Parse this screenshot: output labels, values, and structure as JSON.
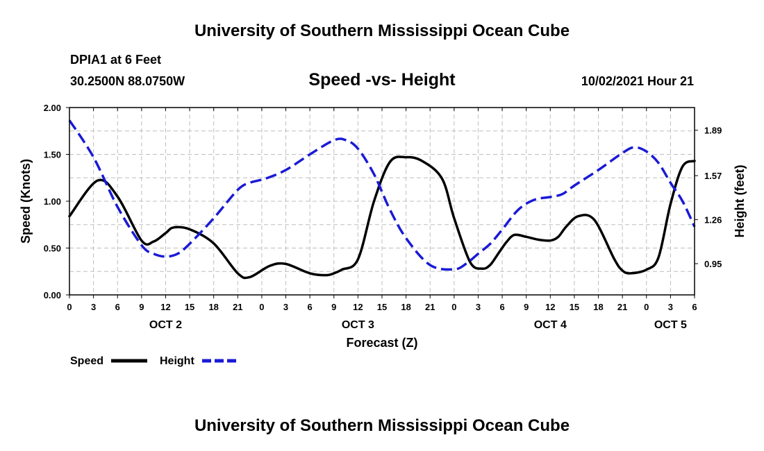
{
  "page": {
    "title_top": "University of Southern Mississippi Ocean Cube",
    "title_bottom": "University of Southern Mississippi Ocean Cube",
    "station_line1": "DPIA1 at 6 Feet",
    "station_line2": "30.2500N  88.0750W",
    "chart_heading": "Speed -vs- Height",
    "date_text": "10/02/2021 Hour 21"
  },
  "colors": {
    "speed": "#000000",
    "height": "#1a1ad6",
    "grid": "#bdbdbd"
  },
  "chart_data": {
    "type": "line",
    "title": "Speed -vs- Height",
    "xlabel": "Forecast (Z)",
    "ylabel": "Speed (Knots)",
    "y2label": "Height (feet)",
    "xlim": [
      0,
      78
    ],
    "ylim": [
      0,
      2.0
    ],
    "y2lim": [
      0.73,
      2.05
    ],
    "x_ticks": [
      0,
      3,
      6,
      9,
      12,
      15,
      18,
      21,
      24,
      27,
      30,
      33,
      36,
      39,
      42,
      45,
      48,
      51,
      54,
      57,
      60,
      63,
      66,
      69,
      72,
      75,
      78
    ],
    "x_tick_labels": [
      "0",
      "3",
      "6",
      "9",
      "12",
      "15",
      "18",
      "21",
      "0",
      "3",
      "6",
      "9",
      "12",
      "15",
      "18",
      "21",
      "0",
      "3",
      "6",
      "9",
      "12",
      "15",
      "18",
      "21",
      "0",
      "3",
      "6"
    ],
    "day_labels": [
      {
        "x": 12,
        "label": "OCT 2"
      },
      {
        "x": 36,
        "label": "OCT 3"
      },
      {
        "x": 60,
        "label": "OCT 4"
      },
      {
        "x": 75,
        "label": "OCT 5"
      }
    ],
    "y_ticks": [
      0,
      0.5,
      1.0,
      1.5,
      2.0
    ],
    "y_tick_labels": [
      "0.00",
      "0.50",
      "1.00",
      "1.50",
      "2.00"
    ],
    "y2_ticks": [
      0.95,
      1.26,
      1.57,
      1.89
    ],
    "y2_tick_labels": [
      "0.95",
      "1.26",
      "1.57",
      "1.89"
    ],
    "series": [
      {
        "name": "Speed",
        "axis": "left",
        "style": "solid",
        "x": [
          0,
          3.5,
          6,
          9,
          10.5,
          12,
          13,
          15,
          18,
          21,
          22.5,
          25,
          27,
          30,
          32,
          33,
          34,
          36,
          38,
          40,
          42,
          44,
          46.5,
          48,
          50,
          51.5,
          52.5,
          53.5,
          54.5,
          55.5,
          57,
          58.5,
          60,
          61,
          62,
          63.5,
          65.5,
          68,
          69,
          70,
          72,
          73.5,
          75,
          76.5,
          78
        ],
        "values": [
          0.84,
          1.22,
          1.05,
          0.58,
          0.57,
          0.66,
          0.72,
          0.7,
          0.55,
          0.23,
          0.19,
          0.31,
          0.33,
          0.23,
          0.21,
          0.23,
          0.27,
          0.38,
          1.0,
          1.42,
          1.47,
          1.43,
          1.24,
          0.82,
          0.35,
          0.28,
          0.32,
          0.44,
          0.56,
          0.64,
          0.62,
          0.59,
          0.58,
          0.62,
          0.73,
          0.84,
          0.8,
          0.38,
          0.26,
          0.23,
          0.27,
          0.4,
          0.97,
          1.37,
          1.43
        ]
      },
      {
        "name": "Height",
        "axis": "right",
        "style": "dashed",
        "x": [
          0,
          3,
          6,
          9,
          10.5,
          12,
          13.5,
          15,
          18,
          21,
          22.5,
          24.5,
          27,
          30,
          33,
          34.5,
          36,
          38,
          40,
          42,
          45,
          48,
          49.5,
          51,
          52.5,
          54,
          56,
          58,
          60,
          61.5,
          63,
          66,
          69,
          70.5,
          72,
          73.5,
          75,
          76.5,
          78
        ],
        "values": [
          1.96,
          1.7,
          1.35,
          1.08,
          1.02,
          1.0,
          1.02,
          1.09,
          1.27,
          1.47,
          1.52,
          1.55,
          1.61,
          1.72,
          1.82,
          1.82,
          1.76,
          1.58,
          1.33,
          1.13,
          0.94,
          0.91,
          0.95,
          1.02,
          1.09,
          1.19,
          1.33,
          1.4,
          1.42,
          1.44,
          1.5,
          1.61,
          1.73,
          1.77,
          1.74,
          1.66,
          1.52,
          1.39,
          1.21
        ]
      }
    ],
    "legend": [
      {
        "label": "Speed",
        "style": "solid"
      },
      {
        "label": "Height",
        "style": "dashed"
      }
    ]
  }
}
